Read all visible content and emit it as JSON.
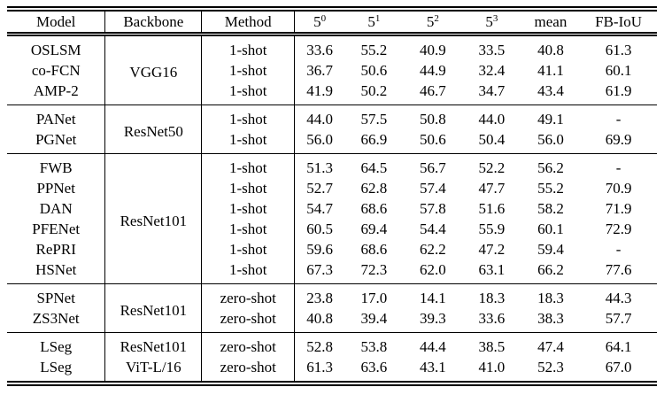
{
  "page": {
    "background_color": "#ffffff",
    "text_color": "#000000"
  },
  "table": {
    "header": {
      "columns": [
        {
          "key": "model",
          "label": "Model"
        },
        {
          "key": "backbone",
          "label": "Backbone"
        },
        {
          "key": "method",
          "label": "Method"
        },
        {
          "key": "fold-0",
          "label": "5",
          "sup": "0"
        },
        {
          "key": "fold-1",
          "label": "5",
          "sup": "1"
        },
        {
          "key": "fold-2",
          "label": "5",
          "sup": "2"
        },
        {
          "key": "fold-3",
          "label": "5",
          "sup": "3"
        },
        {
          "key": "mean",
          "label": "mean"
        },
        {
          "key": "fb-iou",
          "label": "FB-IoU"
        }
      ]
    },
    "groups": [
      {
        "backbone": "VGG16",
        "rows": [
          {
            "model": "OSLSM",
            "method": "1-shot",
            "scores": [
              "33.6",
              "55.2",
              "40.9",
              "33.5",
              "40.8",
              "61.3"
            ],
            "bold": [
              0,
              0,
              0,
              0,
              0,
              0
            ]
          },
          {
            "model": "co-FCN",
            "method": "1-shot",
            "scores": [
              "36.7",
              "50.6",
              "44.9",
              "32.4",
              "41.1",
              "60.1"
            ],
            "bold": [
              0,
              0,
              0,
              0,
              0,
              0
            ]
          },
          {
            "model": "AMP-2",
            "method": "1-shot",
            "scores": [
              "41.9",
              "50.2",
              "46.7",
              "34.7",
              "43.4",
              "61.9"
            ],
            "bold": [
              0,
              0,
              0,
              0,
              0,
              0
            ]
          }
        ]
      },
      {
        "backbone": "ResNet50",
        "rows": [
          {
            "model": "PANet",
            "method": "1-shot",
            "scores": [
              "44.0",
              "57.5",
              "50.8",
              "44.0",
              "49.1",
              "-"
            ],
            "bold": [
              0,
              0,
              0,
              0,
              0,
              0
            ]
          },
          {
            "model": "PGNet",
            "method": "1-shot",
            "scores": [
              "56.0",
              "66.9",
              "50.6",
              "50.4",
              "56.0",
              "69.9"
            ],
            "bold": [
              0,
              0,
              0,
              0,
              0,
              0
            ]
          }
        ]
      },
      {
        "backbone": "ResNet101",
        "rows": [
          {
            "model": "FWB",
            "method": "1-shot",
            "scores": [
              "51.3",
              "64.5",
              "56.7",
              "52.2",
              "56.2",
              "-"
            ],
            "bold": [
              0,
              0,
              0,
              0,
              0,
              0
            ]
          },
          {
            "model": "PPNet",
            "method": "1-shot",
            "scores": [
              "52.7",
              "62.8",
              "57.4",
              "47.7",
              "55.2",
              "70.9"
            ],
            "bold": [
              0,
              0,
              0,
              0,
              0,
              0
            ]
          },
          {
            "model": "DAN",
            "method": "1-shot",
            "scores": [
              "54.7",
              "68.6",
              "57.8",
              "51.6",
              "58.2",
              "71.9"
            ],
            "bold": [
              0,
              0,
              0,
              0,
              0,
              0
            ]
          },
          {
            "model": "PFENet",
            "method": "1-shot",
            "scores": [
              "60.5",
              "69.4",
              "54.4",
              "55.9",
              "60.1",
              "72.9"
            ],
            "bold": [
              0,
              0,
              0,
              0,
              0,
              0
            ]
          },
          {
            "model": "RePRI",
            "method": "1-shot",
            "scores": [
              "59.6",
              "68.6",
              "62.2",
              "47.2",
              "59.4",
              "-"
            ],
            "bold": [
              0,
              0,
              1,
              0,
              0,
              0
            ]
          },
          {
            "model": "HSNet",
            "method": "1-shot",
            "scores": [
              "67.3",
              "72.3",
              "62.0",
              "63.1",
              "66.2",
              "77.6"
            ],
            "bold": [
              1,
              1,
              0,
              1,
              1,
              1
            ]
          }
        ]
      },
      {
        "backbone": "ResNet101",
        "rows": [
          {
            "model": "SPNet",
            "method": "zero-shot",
            "scores": [
              "23.8",
              "17.0",
              "14.1",
              "18.3",
              "18.3",
              "44.3"
            ],
            "bold": [
              0,
              0,
              0,
              0,
              0,
              0
            ]
          },
          {
            "model": "ZS3Net",
            "method": "zero-shot",
            "scores": [
              "40.8",
              "39.4",
              "39.3",
              "33.6",
              "38.3",
              "57.7"
            ],
            "bold": [
              0,
              0,
              0,
              0,
              0,
              0
            ]
          }
        ]
      },
      {
        "rows": [
          {
            "model": "LSeg",
            "backbone": "ResNet101",
            "method": "zero-shot",
            "scores": [
              "52.8",
              "53.8",
              "44.4",
              "38.5",
              "47.4",
              "64.1"
            ],
            "bold": [
              1,
              1,
              1,
              1,
              1,
              1
            ]
          },
          {
            "model": "LSeg",
            "backbone": "ViT-L/16",
            "method": "zero-shot",
            "scores": [
              "61.3",
              "63.6",
              "43.1",
              "41.0",
              "52.3",
              "67.0"
            ],
            "bold": [
              1,
              1,
              1,
              1,
              1,
              1
            ]
          }
        ]
      }
    ]
  }
}
